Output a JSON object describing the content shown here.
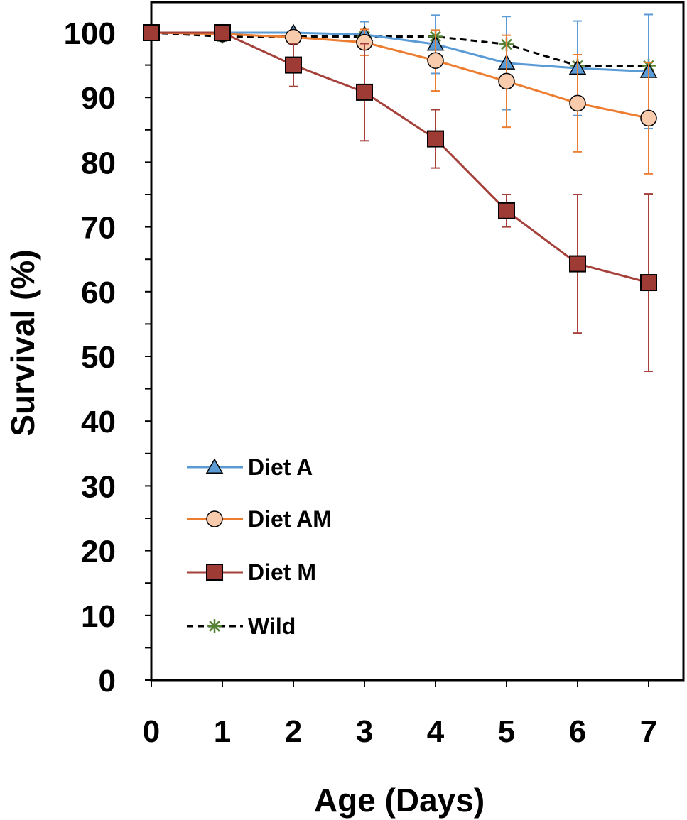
{
  "chart_data": {
    "type": "line",
    "title": "",
    "xlabel": "Age (Days)",
    "ylabel": "Survival (%)",
    "xlim": [
      0,
      7
    ],
    "ylim": [
      0,
      100
    ],
    "x": [
      0,
      1,
      2,
      3,
      4,
      5,
      6,
      7
    ],
    "xticks": [
      "0",
      "1",
      "2",
      "3",
      "4",
      "5",
      "6",
      "7"
    ],
    "yticks": [
      "0",
      "10",
      "20",
      "30",
      "40",
      "50",
      "60",
      "70",
      "80",
      "90",
      "100"
    ],
    "grid": false,
    "legend_position": "bottom-left",
    "series": [
      {
        "name": "Diet A",
        "color": "#5B9BD5",
        "marker": "triangle",
        "marker_fill": "#5B9BD5",
        "dashed": false,
        "values": [
          100,
          100,
          100,
          99.7,
          98.2,
          95.3,
          94.5,
          94.0
        ],
        "error": [
          0,
          0,
          0,
          2.0,
          4.5,
          7.2,
          7.3,
          8.8
        ]
      },
      {
        "name": "Diet AM",
        "color": "#ED7D31",
        "marker": "circle",
        "marker_fill": "#F8CBAD",
        "dashed": false,
        "values": [
          100,
          99.8,
          99.3,
          98.5,
          95.7,
          92.5,
          89.1,
          86.8
        ],
        "error": [
          0,
          0,
          0,
          2.0,
          4.7,
          7.1,
          7.5,
          8.6
        ]
      },
      {
        "name": "Diet M",
        "color": "#A5403A",
        "marker": "square",
        "marker_fill": "#9E3B35",
        "dashed": false,
        "values": [
          100,
          100,
          95.0,
          90.8,
          83.6,
          72.5,
          64.3,
          61.4
        ],
        "error": [
          0,
          0,
          3.3,
          7.5,
          4.5,
          2.5,
          10.7,
          13.7
        ]
      },
      {
        "name": "Wild",
        "color": "#000000",
        "marker": "asterisk",
        "marker_fill": "#548235",
        "dashed": true,
        "values": [
          100,
          99.4,
          99.4,
          99.4,
          99.4,
          98.2,
          94.9,
          94.9
        ],
        "error": [
          0,
          0,
          0,
          0,
          0,
          0,
          0,
          0
        ]
      }
    ]
  }
}
